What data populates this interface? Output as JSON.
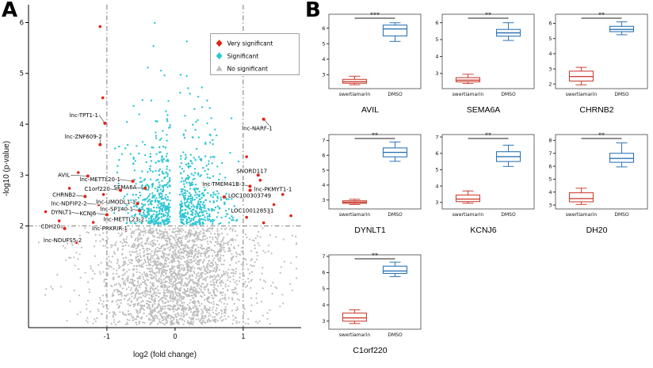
{
  "figure": {
    "panel_a_label": "A",
    "panel_b_label": "B"
  },
  "chart_data": [
    {
      "id": "volcano",
      "type": "scatter",
      "title": "",
      "xlabel": "log2 (fold change)",
      "ylabel": "-log10 (p-value)",
      "xlim": [
        -2.15,
        1.85
      ],
      "ylim": [
        0,
        6.35
      ],
      "xticks": [
        -1,
        0,
        1
      ],
      "yticks": [
        2,
        3,
        4,
        5,
        6
      ],
      "thresholds": {
        "x": [
          -1,
          1
        ],
        "y": 2
      },
      "colors": {
        "very_significant": "#e2231a",
        "significant": "#2cc5d2",
        "no_significant": "#bdbdbd"
      },
      "legend": {
        "position": "top-right",
        "items": [
          {
            "label": "Very significant",
            "color": "#e2231a",
            "shape": "diamond"
          },
          {
            "label": "Significant",
            "color": "#2cc5d2",
            "shape": "diamond"
          },
          {
            "label": "No significant",
            "color": "#bdbdbd",
            "shape": "triangle"
          }
        ]
      },
      "labeled_points": [
        {
          "label": "lnc-TPT1-1",
          "x": -1.03,
          "y": 4.02,
          "lx": -1.55,
          "ly": 4.18,
          "side": "L"
        },
        {
          "label": "lnc-ZNF609-2",
          "x": -1.1,
          "y": 3.6,
          "lx": -1.62,
          "ly": 3.76,
          "side": "L"
        },
        {
          "label": "AVIL",
          "x": -1.28,
          "y": 2.98,
          "lx": -1.72,
          "ly": 3.0,
          "side": "L"
        },
        {
          "label": "lnc-METTL20-1",
          "x": -0.62,
          "y": 2.88,
          "lx": -1.4,
          "ly": 2.92,
          "side": "L"
        },
        {
          "label": "SEMA6A",
          "x": -0.44,
          "y": 2.74,
          "lx": -0.9,
          "ly": 2.76,
          "side": "L"
        },
        {
          "label": "C1orf220",
          "x": -0.8,
          "y": 2.7,
          "lx": -1.33,
          "ly": 2.73,
          "side": "L"
        },
        {
          "label": "CHRNB2",
          "x": -1.32,
          "y": 2.58,
          "lx": -1.8,
          "ly": 2.61,
          "side": "L"
        },
        {
          "label": "lnc-NDFIP2-2",
          "x": -1.12,
          "y": 2.42,
          "lx": -1.82,
          "ly": 2.44,
          "side": "L"
        },
        {
          "label": "lnc-UMODL1-1",
          "x": -0.55,
          "y": 2.44,
          "lx": -1.16,
          "ly": 2.47,
          "side": "L"
        },
        {
          "label": "DYNLT1",
          "x": -1.38,
          "y": 2.24,
          "lx": -1.82,
          "ly": 2.27,
          "side": "L"
        },
        {
          "label": "KCNJ6",
          "x": -1.0,
          "y": 2.22,
          "lx": -1.4,
          "ly": 2.25,
          "side": "L"
        },
        {
          "label": "lnc-SP140-1",
          "x": -0.52,
          "y": 2.3,
          "lx": -1.1,
          "ly": 2.33,
          "side": "L"
        },
        {
          "label": "lnc-METTL23-2",
          "x": -0.48,
          "y": 2.1,
          "lx": -1.05,
          "ly": 2.13,
          "side": "L"
        },
        {
          "label": "CDH20",
          "x": -1.62,
          "y": 1.95,
          "lx": -1.97,
          "ly": 1.99,
          "side": "L"
        },
        {
          "label": "lnc-PRKRIR-1",
          "x": -0.72,
          "y": 1.92,
          "lx": -1.22,
          "ly": 1.95,
          "side": "L"
        },
        {
          "label": "lnc-NDUFS5-2",
          "x": -1.45,
          "y": 1.68,
          "lx": -1.93,
          "ly": 1.72,
          "side": "L"
        },
        {
          "label": "lnc-NARF-1",
          "x": 1.3,
          "y": 4.1,
          "lx": 0.98,
          "ly": 3.92,
          "side": "L"
        },
        {
          "label": "SNORD117",
          "x": 1.22,
          "y": 3.0,
          "lx": 0.9,
          "ly": 3.08,
          "side": "L"
        },
        {
          "label": "lnc-TMEM41B-3",
          "x": 1.1,
          "y": 2.78,
          "lx": 0.4,
          "ly": 2.82,
          "side": "L"
        },
        {
          "label": "lnc-PKMYT1-1",
          "x": 1.1,
          "y": 2.7,
          "lx": 1.16,
          "ly": 2.72,
          "side": "R"
        },
        {
          "label": "LOC100303749",
          "x": 0.72,
          "y": 2.57,
          "lx": 0.78,
          "ly": 2.6,
          "side": "R"
        },
        {
          "label": "LOC100128531",
          "x": 1.38,
          "y": 2.27,
          "lx": 0.82,
          "ly": 2.3,
          "side": "L"
        }
      ],
      "extra_red_points": [
        [
          -1.1,
          5.92
        ],
        [
          -1.06,
          4.52
        ],
        [
          -1.42,
          3.05
        ],
        [
          -1.55,
          2.74
        ],
        [
          -1.9,
          2.28
        ],
        [
          -1.7,
          2.1
        ],
        [
          -1.2,
          2.07
        ],
        [
          -1.05,
          2.62
        ],
        [
          1.05,
          3.36
        ],
        [
          1.25,
          2.9
        ],
        [
          1.58,
          2.62
        ],
        [
          1.45,
          2.42
        ],
        [
          1.7,
          2.2
        ],
        [
          1.05,
          2.17
        ],
        [
          1.3,
          2.06
        ]
      ],
      "cloud": {
        "seed": 7,
        "n_no_significant": 2400,
        "n_significant": 900
      }
    },
    {
      "id": "AVIL",
      "type": "box",
      "title": "AVIL",
      "significance": "***",
      "ylim": [
        2.1,
        6.9
      ],
      "yticks": [
        3,
        4,
        5,
        6
      ],
      "groups": [
        {
          "label": "swertiamarin",
          "color": "#cb4335",
          "whisker_low": 2.35,
          "q1": 2.45,
          "median": 2.55,
          "q3": 2.7,
          "whisker_high": 2.9
        },
        {
          "label": "DMSO",
          "color": "#2e75b6",
          "whisker_low": 5.15,
          "q1": 5.5,
          "median": 5.95,
          "q3": 6.2,
          "whisker_high": 6.35
        }
      ]
    },
    {
      "id": "SEMA6A",
      "type": "box",
      "title": "SEMA6A",
      "significance": "**",
      "ylim": [
        2.1,
        6.5
      ],
      "yticks": [
        3,
        4,
        5,
        6
      ],
      "groups": [
        {
          "label": "swertiamarin",
          "color": "#cb4335",
          "whisker_low": 2.4,
          "q1": 2.5,
          "median": 2.6,
          "q3": 2.75,
          "whisker_high": 2.95
        },
        {
          "label": "DMSO",
          "color": "#2e75b6",
          "whisker_low": 4.95,
          "q1": 5.2,
          "median": 5.4,
          "q3": 5.6,
          "whisker_high": 6.0
        }
      ]
    },
    {
      "id": "CHRNB2",
      "type": "box",
      "title": "CHRNB2",
      "significance": "**",
      "ylim": [
        1.7,
        6.6
      ],
      "yticks": [
        2,
        3,
        4,
        5,
        6
      ],
      "groups": [
        {
          "label": "swertiamarin",
          "color": "#cb4335",
          "whisker_low": 1.95,
          "q1": 2.2,
          "median": 2.5,
          "q3": 2.85,
          "whisker_high": 3.1
        },
        {
          "label": "DMSO",
          "color": "#2e75b6",
          "whisker_low": 5.25,
          "q1": 5.45,
          "median": 5.6,
          "q3": 5.8,
          "whisker_high": 6.1
        }
      ]
    },
    {
      "id": "DYNLT1",
      "type": "box",
      "title": "DYNLT1",
      "significance": "**",
      "ylim": [
        2.4,
        7.4
      ],
      "yticks": [
        3,
        4,
        5,
        6,
        7
      ],
      "groups": [
        {
          "label": "swertiamarin",
          "color": "#cb4335",
          "whisker_low": 2.7,
          "q1": 2.78,
          "median": 2.85,
          "q3": 2.95,
          "whisker_high": 3.05
        },
        {
          "label": "DMSO",
          "color": "#2e75b6",
          "whisker_low": 5.6,
          "q1": 5.9,
          "median": 6.2,
          "q3": 6.5,
          "whisker_high": 6.9
        }
      ]
    },
    {
      "id": "KCNJ6",
      "type": "box",
      "title": "KCNJ6",
      "significance": "**",
      "ylim": [
        2.6,
        7.15
      ],
      "yticks": [
        3,
        4,
        5,
        6,
        7
      ],
      "groups": [
        {
          "label": "swertiamarin",
          "color": "#cb4335",
          "whisker_low": 2.95,
          "q1": 3.05,
          "median": 3.2,
          "q3": 3.45,
          "whisker_high": 3.7
        },
        {
          "label": "DMSO",
          "color": "#2e75b6",
          "whisker_low": 5.2,
          "q1": 5.5,
          "median": 5.8,
          "q3": 6.1,
          "whisker_high": 6.5
        }
      ]
    },
    {
      "id": "DH20",
      "type": "box",
      "title": "DH20",
      "significance": "**",
      "ylim": [
        2.7,
        8.45
      ],
      "yticks": [
        3,
        4,
        5,
        6,
        7,
        8
      ],
      "groups": [
        {
          "label": "swertiamarin",
          "color": "#cb4335",
          "whisker_low": 3.05,
          "q1": 3.25,
          "median": 3.5,
          "q3": 3.95,
          "whisker_high": 4.3
        },
        {
          "label": "DMSO",
          "color": "#2e75b6",
          "whisker_low": 5.95,
          "q1": 6.3,
          "median": 6.6,
          "q3": 7.0,
          "whisker_high": 7.8
        }
      ]
    },
    {
      "id": "C1orf220",
      "type": "box",
      "title": "C1orf220",
      "significance": "**",
      "ylim": [
        2.5,
        7.1
      ],
      "yticks": [
        3,
        4,
        5,
        6,
        7
      ],
      "groups": [
        {
          "label": "swertiamarin",
          "color": "#cb4335",
          "whisker_low": 2.85,
          "q1": 3.0,
          "median": 3.2,
          "q3": 3.5,
          "whisker_high": 3.7
        },
        {
          "label": "DMSO",
          "color": "#2e75b6",
          "whisker_low": 5.75,
          "q1": 5.95,
          "median": 6.1,
          "q3": 6.4,
          "whisker_high": 6.65
        }
      ]
    }
  ]
}
